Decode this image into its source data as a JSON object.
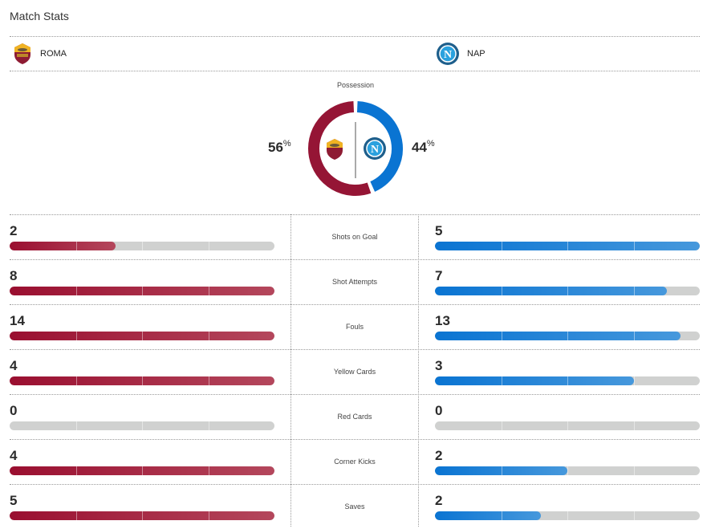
{
  "header": {
    "title": "Match Stats"
  },
  "teams": {
    "home": {
      "name": "ROMA",
      "logo_icon": "as-roma-crest-icon",
      "color": "#9a0f30"
    },
    "away": {
      "name": "NAP",
      "logo_icon": "ssc-napoli-crest-icon",
      "color": "#0a74d2"
    }
  },
  "possession": {
    "label": "Possession",
    "home_value": "56",
    "away_value": "44",
    "unit": "%"
  },
  "stats": [
    {
      "label": "Shots on Goal",
      "home": 2,
      "away": 5
    },
    {
      "label": "Shot Attempts",
      "home": 8,
      "away": 7
    },
    {
      "label": "Fouls",
      "home": 14,
      "away": 13
    },
    {
      "label": "Yellow Cards",
      "home": 4,
      "away": 3
    },
    {
      "label": "Red Cards",
      "home": 0,
      "away": 0
    },
    {
      "label": "Corner Kicks",
      "home": 4,
      "away": 2
    },
    {
      "label": "Saves",
      "home": 5,
      "away": 2
    }
  ],
  "colors": {
    "bar_track": "#d0d1d0",
    "text": "#2b2b2b"
  }
}
